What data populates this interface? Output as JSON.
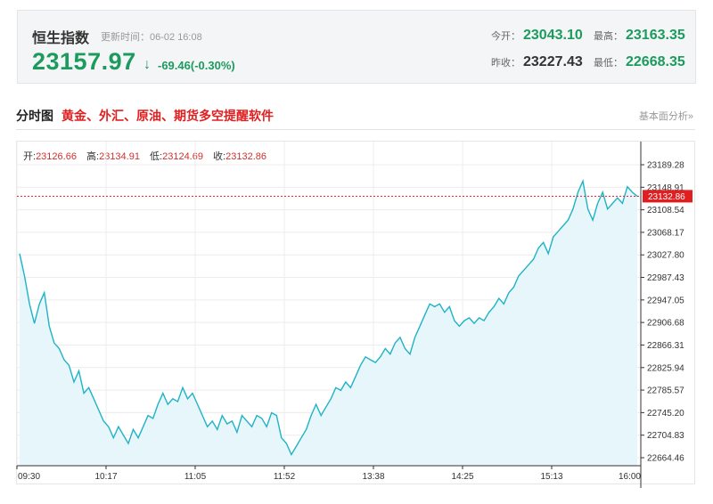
{
  "quote": {
    "name": "恒生指数",
    "update_time": "更新时间：06-02 16:08",
    "price": "23157.97",
    "arrow": "↓",
    "change": "-69.46(-0.30%)",
    "open_label": "今开：",
    "open": "23043.10",
    "high_label": "最高：",
    "high": "23163.35",
    "prev_close_label": "昨收：",
    "prev_close": "23227.43",
    "low_label": "最低：",
    "low": "22668.35",
    "colors": {
      "down": "#1c9b5e",
      "up": "#d03030"
    }
  },
  "section": {
    "title": "分时图",
    "promo_link": "黄金、外汇、原油、期货多空提醒软件",
    "fundamental_link": "基本面分析»"
  },
  "ohlc": {
    "open_label": "开:",
    "open": "23126.66",
    "high_label": "高:",
    "high": "23134.91",
    "low_label": "低:",
    "low": "23124.69",
    "close_label": "收:",
    "close": "23132.86"
  },
  "chart_data": {
    "type": "area",
    "line_color": "#1eb3c5",
    "fill_color": "#e6f6fb",
    "last_value_tag_color": "#e02020",
    "y_ticks": [
      "23189.28",
      "23148.91",
      "23108.54",
      "23068.17",
      "23027.80",
      "22987.43",
      "22947.05",
      "22906.68",
      "22866.31",
      "22825.94",
      "22785.57",
      "22745.20",
      "22704.83",
      "22664.46"
    ],
    "ylim": [
      22650,
      23210
    ],
    "x_ticks": [
      "09:30",
      "10:17",
      "11:05",
      "11:52",
      "13:38",
      "14:25",
      "15:13",
      "16:00"
    ],
    "last_value": "23132.86",
    "series": [
      {
        "values": [
          23030,
          22990,
          22940,
          22905,
          22940,
          22960,
          22900,
          22870,
          22860,
          22840,
          22830,
          22800,
          22820,
          22780,
          22790,
          22770,
          22750,
          22730,
          22720,
          22700,
          22720,
          22705,
          22690,
          22715,
          22700,
          22720,
          22740,
          22735,
          22760,
          22780,
          22760,
          22770,
          22765,
          22790,
          22770,
          22780,
          22760,
          22740,
          22720,
          22730,
          22715,
          22740,
          22725,
          22730,
          22710,
          22740,
          22730,
          22720,
          22740,
          22735,
          22720,
          22745,
          22740,
          22700,
          22690,
          22670,
          22685,
          22700,
          22715,
          22740,
          22760,
          22740,
          22755,
          22770,
          22790,
          22785,
          22800,
          22790,
          22810,
          22830,
          22845,
          22840,
          22835,
          22845,
          22860,
          22850,
          22870,
          22880,
          22860,
          22850,
          22880,
          22900,
          22920,
          22940,
          22935,
          22940,
          22925,
          22935,
          22910,
          22900,
          22910,
          22915,
          22905,
          22915,
          22910,
          22925,
          22935,
          22950,
          22940,
          22960,
          22970,
          22990,
          23000,
          23010,
          23020,
          23040,
          23050,
          23030,
          23060,
          23070,
          23080,
          23090,
          23110,
          23140,
          23160,
          23110,
          23090,
          23120,
          23140,
          23110,
          23120,
          23130,
          23120,
          23150,
          23140,
          23132.86
        ]
      }
    ]
  }
}
